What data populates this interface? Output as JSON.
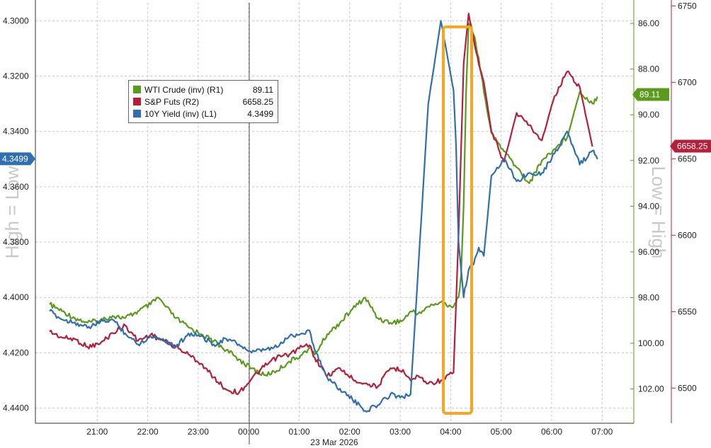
{
  "chart_data": {
    "type": "line",
    "date_label": "23 Mar 2026",
    "x_ticks": [
      "21:00",
      "22:00",
      "23:00",
      "00:00",
      "01:00",
      "02:00",
      "03:00",
      "04:00",
      "05:00",
      "06:00",
      "07:00"
    ],
    "left_axis": {
      "ticks": [
        "4.3000",
        "4.3200",
        "4.3400",
        "4.3600",
        "4.3800",
        "4.4000",
        "4.4200",
        "4.4400"
      ],
      "ylim": [
        4.2935,
        4.4455
      ],
      "inverted": true,
      "watermark": "High = Low"
    },
    "right_axis_1": {
      "ticks": [
        "86.00",
        "88.00",
        "90.00",
        "92.00",
        "94.00",
        "96.00",
        "98.00",
        "100.00",
        "102.00"
      ],
      "ylim": [
        85.1,
        103.5
      ],
      "inverted": true,
      "watermark": "Low = High"
    },
    "right_axis_2": {
      "ticks": [
        "6750",
        "6700",
        "6650",
        "6600",
        "6550",
        "6500"
      ],
      "ylim": [
        6477,
        6752
      ]
    },
    "series": [
      {
        "name": "WTI Crude (inv) (R1)",
        "last_value": "89.11",
        "color": "#5a9a1c",
        "axis": "right_axis_1",
        "x": [
          0.0,
          0.25,
          0.5,
          0.75,
          1.0,
          1.25,
          1.5,
          1.75,
          2.0,
          2.15,
          2.3,
          2.5,
          2.75,
          3.0,
          3.25,
          3.5,
          3.75,
          4.0,
          4.25,
          4.5,
          4.75,
          5.0,
          5.15,
          5.25,
          5.5,
          5.75,
          6.0,
          6.25,
          6.5,
          6.75,
          7.0,
          7.15,
          7.3,
          7.5,
          7.75,
          8.0,
          8.1,
          8.15,
          8.2,
          8.25,
          8.3,
          8.4,
          8.5,
          8.6,
          8.75,
          9.0,
          9.25,
          9.5,
          9.75,
          10.0,
          10.25,
          10.5,
          10.75,
          10.85
        ],
        "values": [
          98.3,
          98.6,
          98.9,
          99.1,
          99.0,
          98.8,
          98.9,
          98.6,
          98.3,
          98.0,
          98.4,
          98.9,
          99.3,
          99.6,
          99.9,
          100.3,
          100.7,
          101.1,
          101.4,
          101.2,
          100.8,
          100.5,
          100.2,
          100.5,
          99.6,
          99.1,
          98.5,
          98.0,
          98.9,
          99.1,
          99.0,
          98.6,
          98.7,
          98.4,
          98.2,
          98.4,
          98.0,
          97.0,
          94.0,
          89.0,
          86.0,
          86.5,
          87.5,
          89.0,
          90.8,
          91.6,
          92.3,
          93.0,
          92.0,
          91.5,
          91.0,
          89.0,
          89.5,
          89.2
        ]
      },
      {
        "name": "S&P Futs (R2)",
        "last_value": "6658.25",
        "color": "#b51f3a",
        "axis": "right_axis_2",
        "x": [
          0.0,
          0.25,
          0.5,
          0.75,
          1.0,
          1.25,
          1.5,
          1.75,
          2.0,
          2.25,
          2.5,
          2.75,
          3.0,
          3.25,
          3.5,
          3.75,
          4.0,
          4.25,
          4.5,
          4.75,
          5.0,
          5.15,
          5.25,
          5.5,
          5.75,
          6.0,
          6.25,
          6.5,
          6.75,
          7.0,
          7.15,
          7.3,
          7.5,
          7.75,
          8.0,
          8.1,
          8.2,
          8.3,
          8.4,
          8.5,
          8.6,
          8.75,
          9.0,
          9.25,
          9.5,
          9.75,
          10.0,
          10.25,
          10.5,
          10.75
        ],
        "values": [
          6537,
          6533,
          6532,
          6527,
          6529,
          6536,
          6541,
          6531,
          6535,
          6531,
          6527,
          6522,
          6516,
          6507,
          6499,
          6497,
          6506,
          6514,
          6520,
          6522,
          6527,
          6528,
          6520,
          6508,
          6513,
          6506,
          6503,
          6501,
          6513,
          6512,
          6505,
          6508,
          6503,
          6505,
          6510,
          6600,
          6712,
          6745,
          6728,
          6712,
          6700,
          6668,
          6648,
          6680,
          6672,
          6662,
          6691,
          6707,
          6697,
          6658
        ]
      },
      {
        "name": "10Y Yield (inv) (L1)",
        "last_value": "4.3499",
        "color": "#2f6fb0",
        "axis": "left_axis",
        "x": [
          0.0,
          0.25,
          0.5,
          0.75,
          1.0,
          1.25,
          1.5,
          1.75,
          2.0,
          2.25,
          2.5,
          2.75,
          3.0,
          3.25,
          3.5,
          3.75,
          4.0,
          4.25,
          4.5,
          4.75,
          5.0,
          5.15,
          5.25,
          5.5,
          5.75,
          6.0,
          6.25,
          6.5,
          6.75,
          7.0,
          7.15,
          7.3,
          7.5,
          7.75,
          8.0,
          8.05,
          8.1,
          8.2,
          8.3,
          8.4,
          8.5,
          8.6,
          8.75,
          9.0,
          9.25,
          9.5,
          9.75,
          10.0,
          10.25,
          10.5,
          10.75,
          10.85
        ],
        "values": [
          4.405,
          4.408,
          4.409,
          4.411,
          4.409,
          4.408,
          4.413,
          4.417,
          4.414,
          4.415,
          4.418,
          4.413,
          4.414,
          4.417,
          4.415,
          4.417,
          4.42,
          4.419,
          4.418,
          4.414,
          4.413,
          4.412,
          4.419,
          4.429,
          4.433,
          4.437,
          4.441,
          4.439,
          4.435,
          4.436,
          4.435,
          4.39,
          4.33,
          4.3,
          4.325,
          4.345,
          4.38,
          4.4,
          4.39,
          4.388,
          4.382,
          4.385,
          4.356,
          4.35,
          4.358,
          4.355,
          4.355,
          4.348,
          4.34,
          4.352,
          4.347,
          4.35
        ]
      }
    ],
    "annotation": "highlight box around 04:00 spike"
  }
}
